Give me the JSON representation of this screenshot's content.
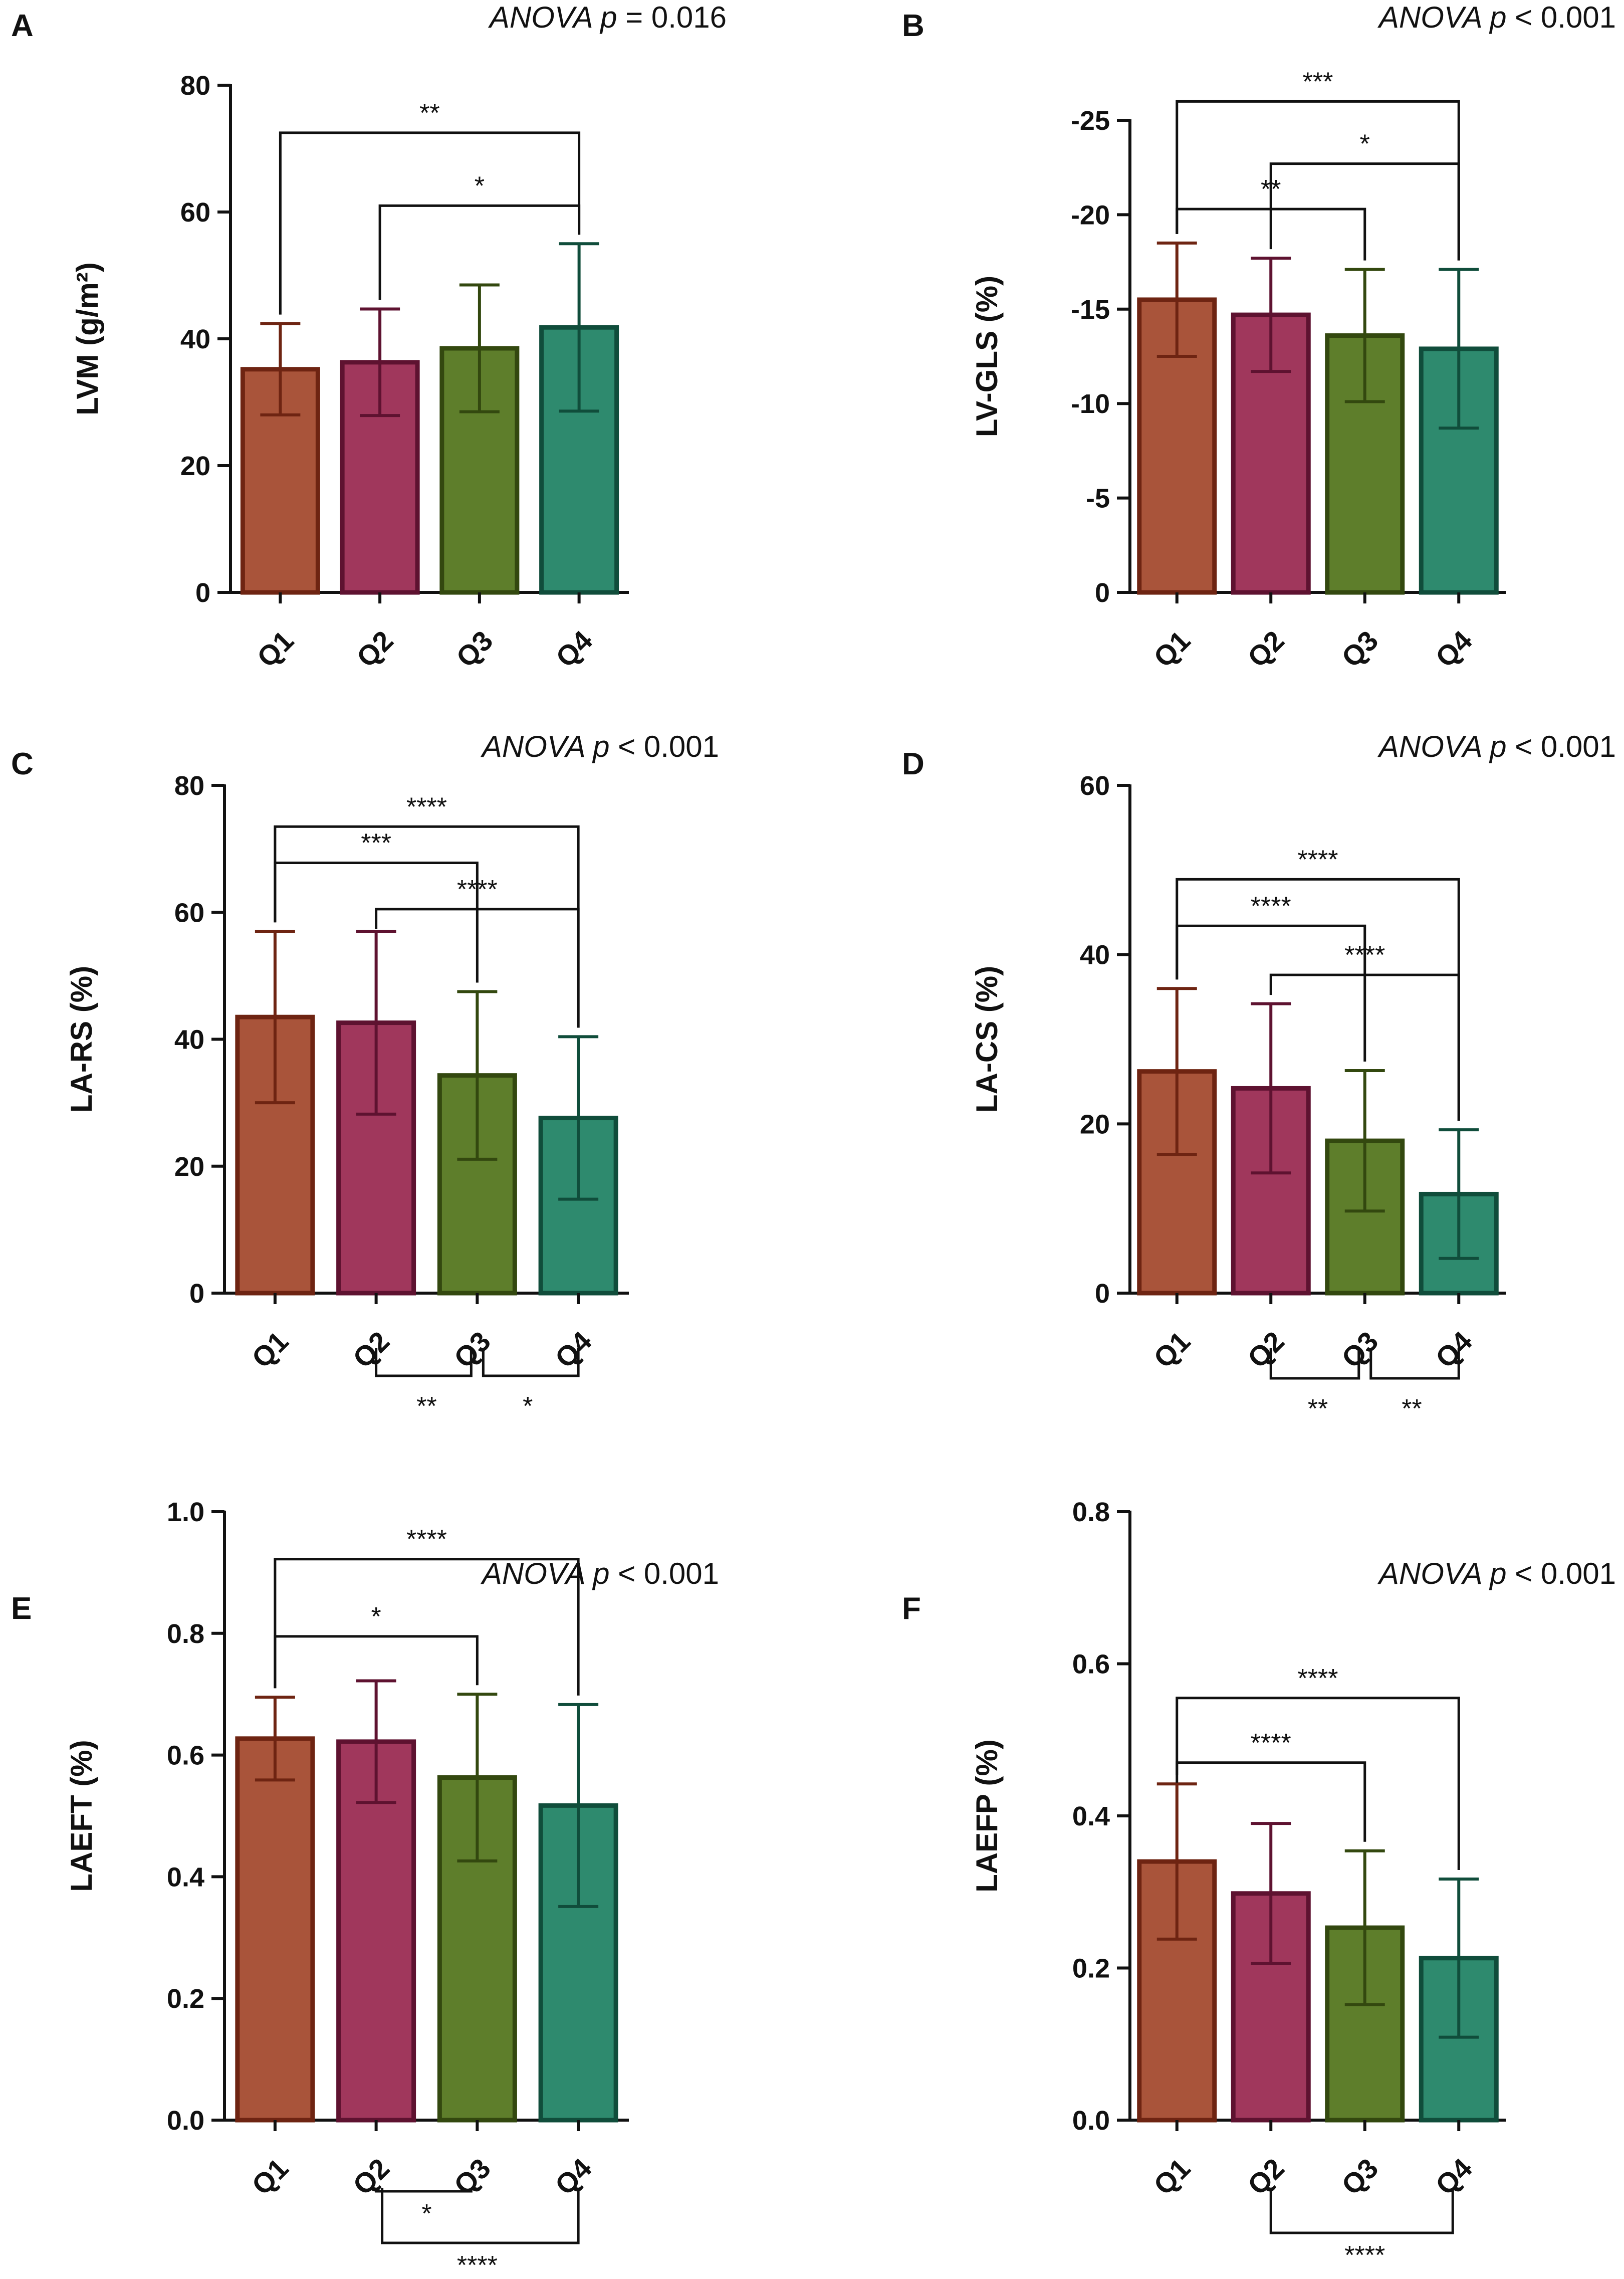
{
  "colors": {
    "fills": [
      "#A9543A",
      "#A0375C",
      "#5E7E2B",
      "#2E8A6E"
    ],
    "strokes": [
      "#6E2412",
      "#5E1230",
      "#33480F",
      "#104D3B"
    ],
    "axis": "#111111"
  },
  "chart_data": [
    {
      "panel": "A",
      "type": "bar",
      "anova": {
        "prefix": "ANOVA p",
        "rest": " = 0.016"
      },
      "ylabel": "LVM (g/m²)",
      "categories": [
        "Q1",
        "Q2",
        "Q3",
        "Q4"
      ],
      "ylim": [
        0,
        80
      ],
      "reversed": false,
      "ticks": [
        0,
        20,
        40,
        60,
        80
      ],
      "tick_labels": [
        "0",
        "20",
        "40",
        "60",
        "80"
      ],
      "values": [
        35.2,
        36.3,
        38.5,
        41.8
      ],
      "errors": [
        7.2,
        8.4,
        10.0,
        13.2
      ],
      "brackets": [
        {
          "from": 0,
          "to": 3,
          "value": 72.5,
          "label": "**",
          "side": "above"
        },
        {
          "from": 1,
          "to": 3,
          "value": 61.0,
          "label": "*",
          "side": "above"
        }
      ]
    },
    {
      "panel": "B",
      "type": "bar",
      "anova": {
        "prefix": "ANOVA p",
        "rest": " < 0.001"
      },
      "ylabel": "LV-GLS (%)",
      "categories": [
        "Q1",
        "Q2",
        "Q3",
        "Q4"
      ],
      "ylim": [
        0,
        -25
      ],
      "reversed": true,
      "ticks": [
        0,
        -5,
        -10,
        -15,
        -20,
        -25
      ],
      "tick_labels": [
        "0",
        "-5",
        "-10",
        "-15",
        "-20",
        "-25"
      ],
      "values": [
        -15.5,
        -14.7,
        -13.6,
        -12.9
      ],
      "errors": [
        3.0,
        3.0,
        3.5,
        4.2
      ],
      "brackets": [
        {
          "from": 0,
          "to": 3,
          "value": -26.0,
          "label": "***",
          "side": "above"
        },
        {
          "from": 1,
          "to": 3,
          "value": -22.7,
          "label": "*",
          "side": "above"
        },
        {
          "from": 0,
          "to": 2,
          "value": -20.3,
          "label": "**",
          "side": "above"
        }
      ]
    },
    {
      "panel": "C",
      "type": "bar",
      "anova": {
        "prefix": "ANOVA p",
        "rest": " < 0.001"
      },
      "ylabel": "LA-RS (%)",
      "categories": [
        "Q1",
        "Q2",
        "Q3",
        "Q4"
      ],
      "ylim": [
        0,
        80
      ],
      "reversed": false,
      "ticks": [
        0,
        20,
        40,
        60,
        80
      ],
      "tick_labels": [
        "0",
        "20",
        "40",
        "60",
        "80"
      ],
      "values": [
        43.5,
        42.6,
        34.3,
        27.6
      ],
      "errors": [
        13.5,
        14.4,
        13.2,
        12.8
      ],
      "brackets": [
        {
          "from": 0,
          "to": 3,
          "value": 73.5,
          "label": "****",
          "side": "above"
        },
        {
          "from": 0,
          "to": 2,
          "value": 67.8,
          "label": "***",
          "side": "above"
        },
        {
          "from": 1,
          "to": 3,
          "value": 60.5,
          "label": "****",
          "side": "above"
        },
        {
          "from": 1,
          "to": 2,
          "label": "**",
          "side": "below"
        },
        {
          "from": 2,
          "to": 3,
          "label": "*",
          "side": "below"
        }
      ]
    },
    {
      "panel": "D",
      "type": "bar",
      "anova": {
        "prefix": "ANOVA p",
        "rest": " < 0.001"
      },
      "ylabel": "LA-CS (%)",
      "categories": [
        "Q1",
        "Q2",
        "Q3",
        "Q4"
      ],
      "ylim": [
        0,
        60
      ],
      "reversed": false,
      "ticks": [
        0,
        20,
        40,
        60
      ],
      "tick_labels": [
        "0",
        "20",
        "40",
        "60"
      ],
      "values": [
        26.2,
        24.2,
        18.0,
        11.7
      ],
      "errors": [
        9.8,
        10.0,
        8.3,
        7.6
      ],
      "brackets": [
        {
          "from": 0,
          "to": 3,
          "value": 48.9,
          "label": "****",
          "side": "above"
        },
        {
          "from": 0,
          "to": 2,
          "value": 43.4,
          "label": "****",
          "side": "above"
        },
        {
          "from": 1,
          "to": 3,
          "value": 37.6,
          "label": "****",
          "side": "above"
        },
        {
          "from": 1,
          "to": 2,
          "label": "**",
          "side": "below"
        },
        {
          "from": 2,
          "to": 3,
          "label": "**",
          "side": "below"
        }
      ]
    },
    {
      "panel": "E",
      "type": "bar",
      "anova": {
        "prefix": "ANOVA p",
        "rest": " < 0.001"
      },
      "ylabel": "LAEFT (%)",
      "categories": [
        "Q1",
        "Q2",
        "Q3",
        "Q4"
      ],
      "ylim": [
        0,
        1.0
      ],
      "reversed": false,
      "ticks": [
        0,
        0.2,
        0.4,
        0.6,
        0.8,
        1.0
      ],
      "tick_labels": [
        "0.0",
        "0.2",
        "0.4",
        "0.6",
        "0.8",
        "1.0"
      ],
      "values": [
        0.627,
        0.622,
        0.563,
        0.517
      ],
      "errors": [
        0.068,
        0.1,
        0.137,
        0.166
      ],
      "brackets": [
        {
          "from": 0,
          "to": 3,
          "value": 0.922,
          "label": "****",
          "side": "above"
        },
        {
          "from": 0,
          "to": 2,
          "value": 0.795,
          "label": "*",
          "side": "above"
        },
        {
          "from": 1,
          "to": 2,
          "label": "*",
          "side": "below"
        },
        {
          "from": 1,
          "to": 3,
          "label": "****",
          "side": "below"
        }
      ]
    },
    {
      "panel": "F",
      "type": "bar",
      "anova": {
        "prefix": "ANOVA p",
        "rest": " < 0.001"
      },
      "ylabel": "LAEFP (%)",
      "categories": [
        "Q1",
        "Q2",
        "Q3",
        "Q4"
      ],
      "ylim": [
        0,
        0.8
      ],
      "reversed": false,
      "ticks": [
        0,
        0.2,
        0.4,
        0.6,
        0.8
      ],
      "tick_labels": [
        "0.0",
        "0.2",
        "0.4",
        "0.6",
        "0.8"
      ],
      "values": [
        0.34,
        0.298,
        0.253,
        0.213
      ],
      "errors": [
        0.102,
        0.092,
        0.101,
        0.104
      ],
      "brackets": [
        {
          "from": 0,
          "to": 3,
          "value": 0.555,
          "label": "****",
          "side": "above"
        },
        {
          "from": 0,
          "to": 2,
          "value": 0.47,
          "label": "****",
          "side": "above"
        },
        {
          "from": 1,
          "to": 3,
          "label": "****",
          "side": "below"
        }
      ]
    }
  ]
}
